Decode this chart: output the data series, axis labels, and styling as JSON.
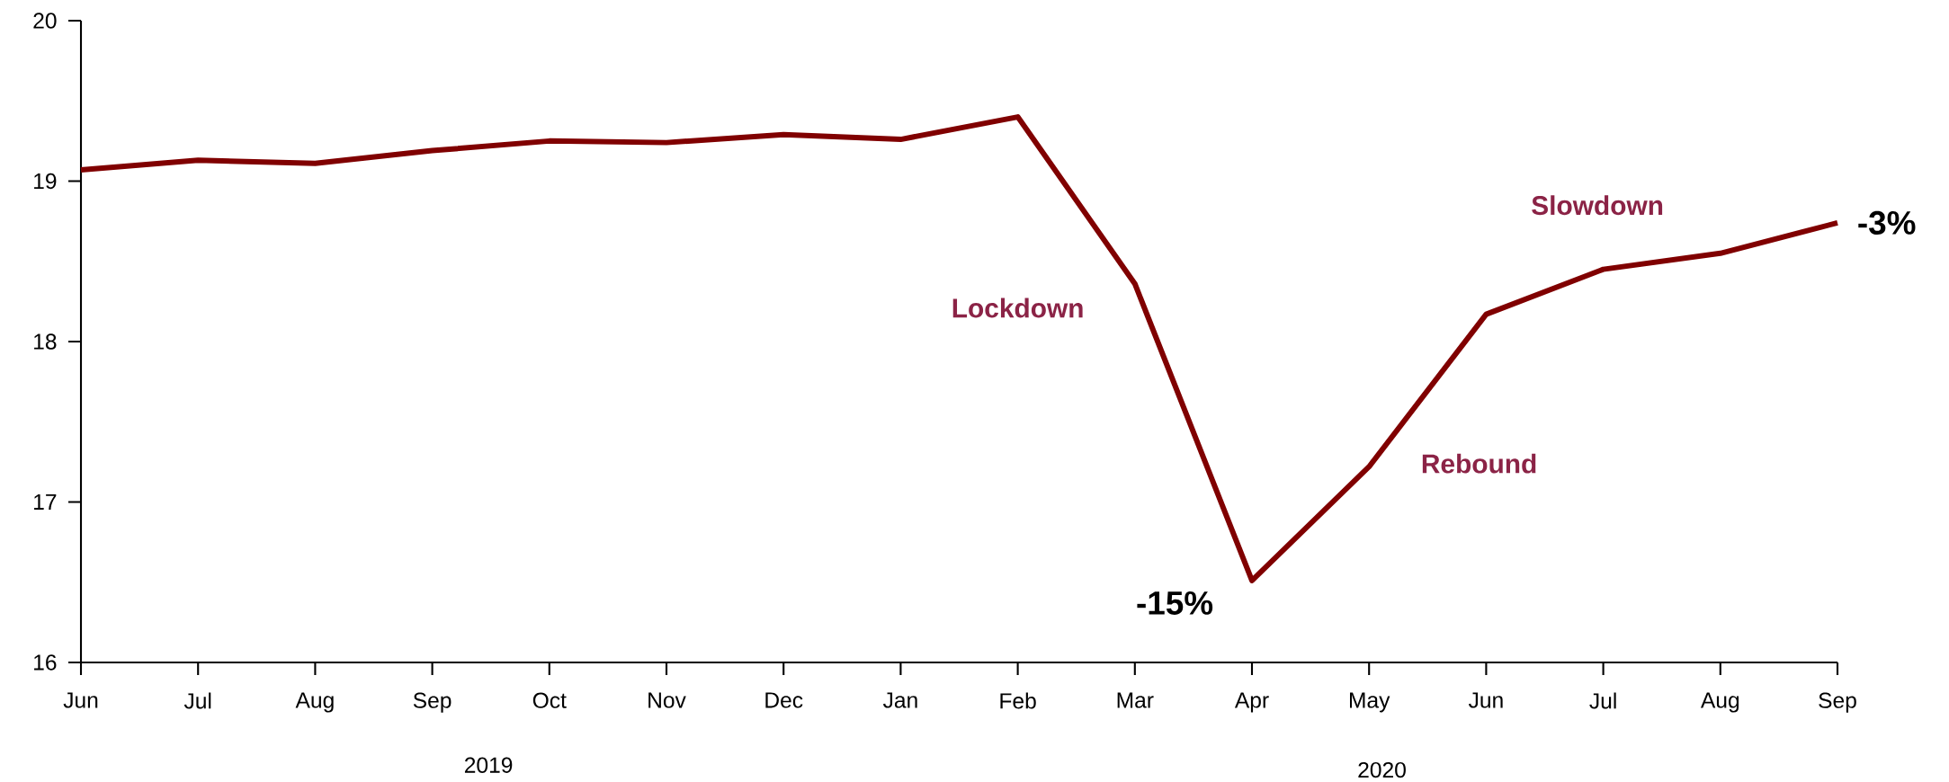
{
  "chart_data": {
    "type": "line",
    "categories": [
      "Jun",
      "Jul",
      "Aug",
      "Sep",
      "Oct",
      "Nov",
      "Dec",
      "Jan",
      "Feb",
      "Mar",
      "Apr",
      "May",
      "Jun",
      "Jul",
      "Aug",
      "Sep"
    ],
    "series": [
      {
        "color": "#800000",
        "values": [
          19.07,
          19.13,
          19.11,
          19.19,
          19.25,
          19.24,
          19.29,
          19.26,
          19.4,
          18.36,
          16.51,
          17.22,
          18.17,
          18.45,
          18.55,
          18.74
        ]
      }
    ],
    "ylim": [
      16,
      20
    ],
    "yticks": [
      16,
      17,
      18,
      19,
      20
    ],
    "annotations": [
      "Lockdown",
      "Rebound",
      "Slowdown",
      "-15%",
      "-3%",
      "2019",
      "2020"
    ],
    "marker": "none",
    "line_style": "solid",
    "grid": false
  }
}
